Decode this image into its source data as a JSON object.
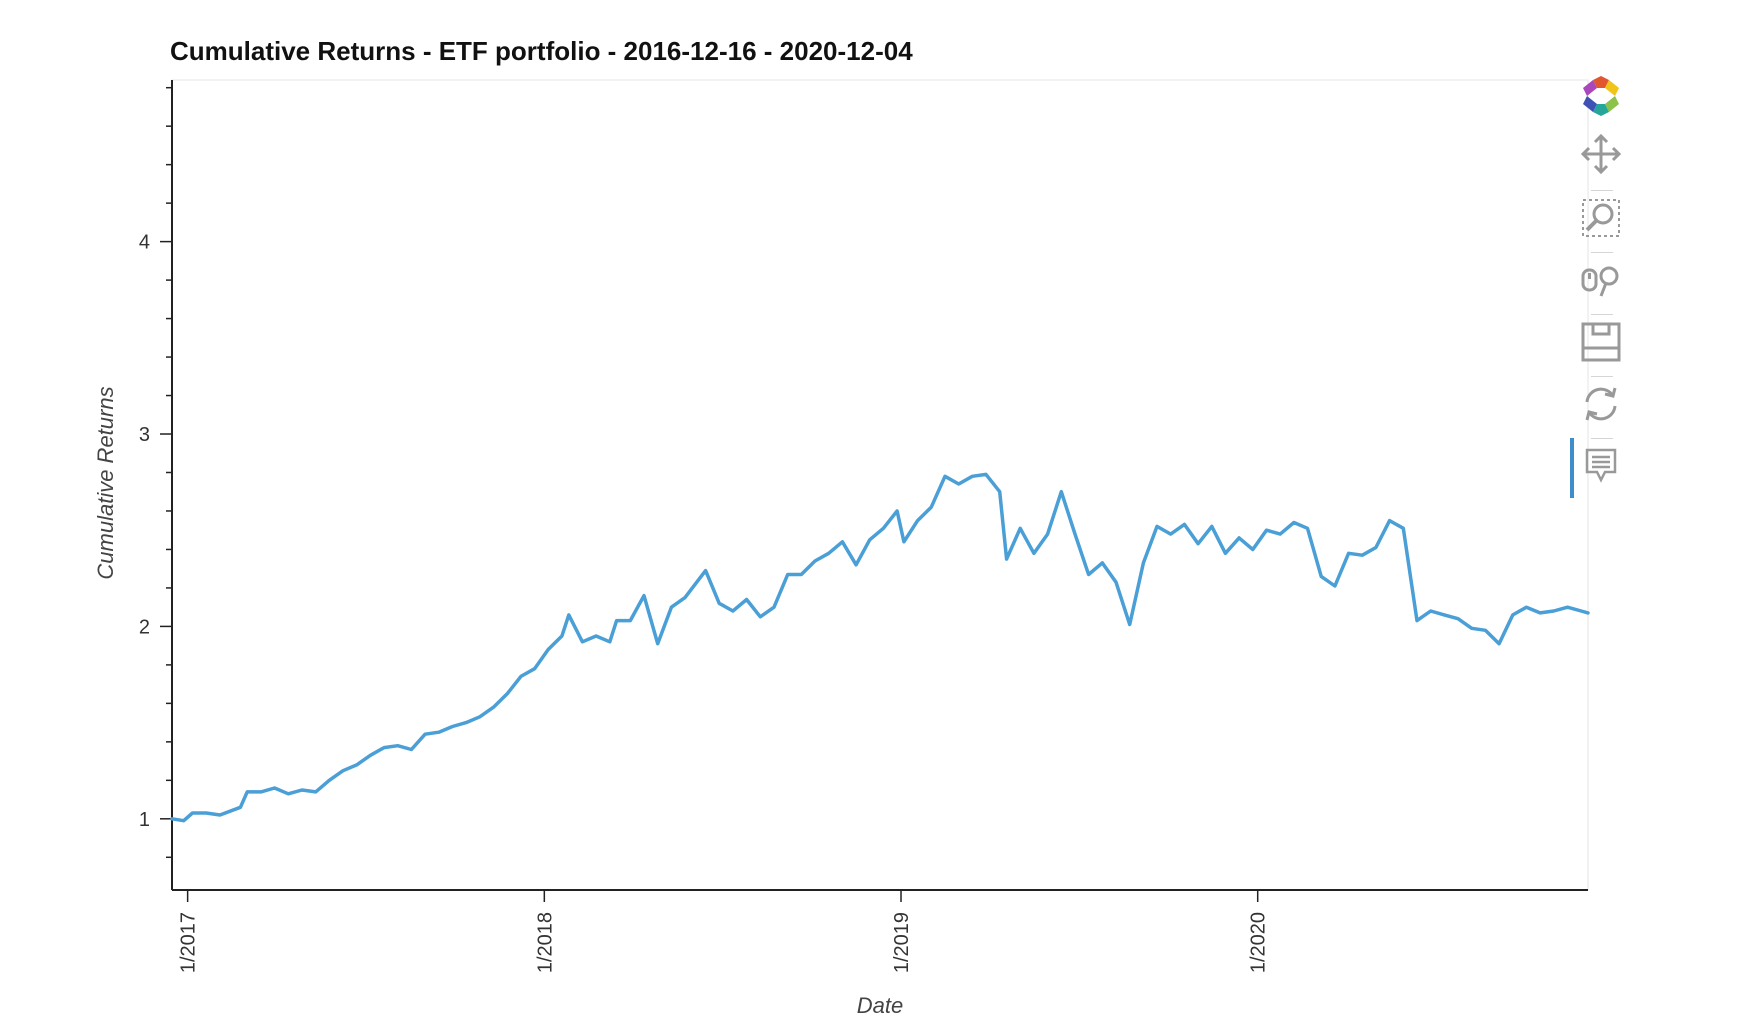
{
  "chart_data": {
    "type": "line",
    "title": "Cumulative Returns - ETF portfolio - 2016-12-16 - 2020-12-04",
    "xlabel": "Date",
    "ylabel": "Cumulative Returns",
    "x_type": "date",
    "xlim": [
      "2016-12-16",
      "2020-12-04"
    ],
    "ylim": [
      0.63,
      4.84
    ],
    "x_ticks": [
      "1/2017",
      "1/2018",
      "1/2019",
      "1/2020"
    ],
    "y_ticks": [
      "1",
      "2",
      "3",
      "4"
    ],
    "grid": false,
    "legend": "none",
    "line_color": "#4a9fd6",
    "series": [
      {
        "points": [
          [
            "2016-12-16",
            1.0
          ],
          [
            "2016-12-28",
            0.99
          ],
          [
            "2017-01-06",
            1.03
          ],
          [
            "2017-01-20",
            1.03
          ],
          [
            "2017-02-03",
            1.02
          ],
          [
            "2017-02-24",
            1.06
          ],
          [
            "2017-03-03",
            1.14
          ],
          [
            "2017-03-17",
            1.14
          ],
          [
            "2017-03-31",
            1.16
          ],
          [
            "2017-04-14",
            1.13
          ],
          [
            "2017-04-28",
            1.15
          ],
          [
            "2017-05-12",
            1.14
          ],
          [
            "2017-05-26",
            1.2
          ],
          [
            "2017-06-09",
            1.25
          ],
          [
            "2017-06-23",
            1.28
          ],
          [
            "2017-07-07",
            1.33
          ],
          [
            "2017-07-21",
            1.37
          ],
          [
            "2017-08-04",
            1.38
          ],
          [
            "2017-08-18",
            1.36
          ],
          [
            "2017-09-01",
            1.44
          ],
          [
            "2017-09-15",
            1.45
          ],
          [
            "2017-09-29",
            1.48
          ],
          [
            "2017-10-13",
            1.5
          ],
          [
            "2017-10-27",
            1.53
          ],
          [
            "2017-11-10",
            1.58
          ],
          [
            "2017-11-24",
            1.65
          ],
          [
            "2017-12-08",
            1.74
          ],
          [
            "2017-12-22",
            1.78
          ],
          [
            "2018-01-05",
            1.88
          ],
          [
            "2018-01-19",
            1.95
          ],
          [
            "2018-01-26",
            2.06
          ],
          [
            "2018-02-09",
            1.92
          ],
          [
            "2018-02-23",
            1.95
          ],
          [
            "2018-03-09",
            1.92
          ],
          [
            "2018-03-16",
            2.03
          ],
          [
            "2018-03-30",
            2.03
          ],
          [
            "2018-04-13",
            2.16
          ],
          [
            "2018-04-27",
            1.91
          ],
          [
            "2018-05-11",
            2.1
          ],
          [
            "2018-05-25",
            2.15
          ],
          [
            "2018-06-15",
            2.29
          ],
          [
            "2018-06-29",
            2.12
          ],
          [
            "2018-07-13",
            2.08
          ],
          [
            "2018-07-27",
            2.14
          ],
          [
            "2018-08-10",
            2.05
          ],
          [
            "2018-08-24",
            2.1
          ],
          [
            "2018-09-07",
            2.27
          ],
          [
            "2018-09-21",
            2.27
          ],
          [
            "2018-10-05",
            2.34
          ],
          [
            "2018-10-19",
            2.38
          ],
          [
            "2018-11-02",
            2.44
          ],
          [
            "2018-11-16",
            2.32
          ],
          [
            "2018-11-30",
            2.45
          ],
          [
            "2018-12-14",
            2.51
          ],
          [
            "2018-12-28",
            2.6
          ],
          [
            "2019-01-04",
            2.44
          ],
          [
            "2019-01-18",
            2.55
          ],
          [
            "2019-02-01",
            2.62
          ],
          [
            "2019-02-15",
            2.78
          ],
          [
            "2019-03-01",
            2.74
          ],
          [
            "2019-03-15",
            2.78
          ],
          [
            "2019-03-29",
            2.79
          ],
          [
            "2019-04-12",
            2.7
          ],
          [
            "2019-04-19",
            2.35
          ],
          [
            "2019-05-03",
            2.51
          ],
          [
            "2019-05-17",
            2.38
          ],
          [
            "2019-05-31",
            2.48
          ],
          [
            "2019-06-14",
            2.7
          ],
          [
            "2019-06-28",
            2.48
          ],
          [
            "2019-07-12",
            2.27
          ],
          [
            "2019-07-26",
            2.33
          ],
          [
            "2019-08-09",
            2.23
          ],
          [
            "2019-08-23",
            2.01
          ],
          [
            "2019-09-06",
            2.33
          ],
          [
            "2019-09-20",
            2.52
          ],
          [
            "2019-10-04",
            2.48
          ],
          [
            "2019-10-18",
            2.53
          ],
          [
            "2019-11-01",
            2.43
          ],
          [
            "2019-11-15",
            2.52
          ],
          [
            "2019-11-29",
            2.38
          ],
          [
            "2019-12-13",
            2.46
          ],
          [
            "2019-12-27",
            2.4
          ],
          [
            "2020-01-10",
            2.5
          ],
          [
            "2020-01-24",
            2.48
          ],
          [
            "2020-02-07",
            2.54
          ],
          [
            "2020-02-21",
            2.51
          ],
          [
            "2020-03-06",
            2.26
          ],
          [
            "2020-03-20",
            2.21
          ],
          [
            "2020-04-03",
            2.38
          ],
          [
            "2020-04-17",
            2.37
          ],
          [
            "2020-05-01",
            2.41
          ],
          [
            "2020-05-15",
            2.55
          ],
          [
            "2020-05-29",
            2.51
          ],
          [
            "2020-06-12",
            2.03
          ],
          [
            "2020-06-26",
            2.08
          ],
          [
            "2020-07-10",
            2.06
          ],
          [
            "2020-07-24",
            2.04
          ],
          [
            "2020-08-07",
            1.99
          ],
          [
            "2020-08-21",
            1.98
          ],
          [
            "2020-09-04",
            1.91
          ],
          [
            "2020-09-18",
            2.06
          ],
          [
            "2020-10-02",
            2.1
          ],
          [
            "2020-10-16",
            2.07
          ],
          [
            "2020-10-30",
            2.08
          ],
          [
            "2020-11-13",
            2.1
          ],
          [
            "2020-11-27",
            2.08
          ],
          [
            "2020-12-04",
            2.07
          ]
        ]
      }
    ]
  },
  "toolbar": {
    "tools": [
      "bokeh-logo-icon",
      "pan-icon",
      "box-zoom-icon",
      "wheel-zoom-icon",
      "save-icon",
      "reset-icon",
      "hover-icon"
    ]
  }
}
